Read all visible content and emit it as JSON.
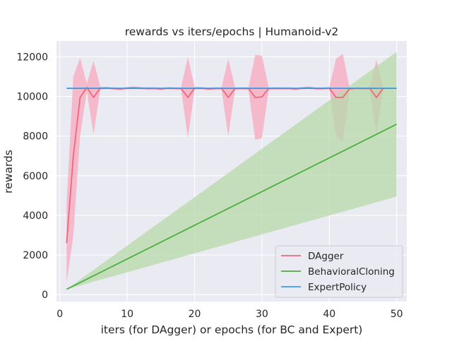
{
  "chart_data": {
    "type": "line",
    "title": "rewards vs iters/epochs | Humanoid-v2",
    "xlabel": "iters (for DAgger) or epochs (for BC and Expert)",
    "ylabel": "rewards",
    "xlim": [
      -0.5,
      51.5
    ],
    "ylim": [
      -350,
      12800
    ],
    "xticks": [
      0,
      10,
      20,
      30,
      40,
      50
    ],
    "yticks": [
      0,
      2000,
      4000,
      6000,
      8000,
      10000,
      12000
    ],
    "grid": true,
    "legend_position": "lower-right",
    "background_color": "#eaeaf2",
    "series": [
      {
        "name": "DAgger",
        "color": "#f0677d",
        "band_color": "#f7a8bc",
        "x": [
          1,
          2,
          3,
          4,
          5,
          6,
          7,
          8,
          9,
          10,
          11,
          12,
          13,
          14,
          15,
          16,
          17,
          18,
          19,
          20,
          21,
          22,
          23,
          24,
          25,
          26,
          27,
          28,
          29,
          30,
          31,
          32,
          33,
          34,
          35,
          36,
          37,
          38,
          39,
          40,
          41,
          42,
          43,
          44,
          45,
          46,
          47,
          48
        ],
        "y": [
          2600,
          7000,
          9950,
          10450,
          9950,
          10420,
          10430,
          10400,
          10380,
          10420,
          10440,
          10420,
          10400,
          10410,
          10380,
          10420,
          10410,
          10400,
          9950,
          10420,
          10420,
          10380,
          10400,
          10410,
          9950,
          10400,
          10410,
          10400,
          9950,
          9980,
          10400,
          10410,
          10400,
          10410,
          10380,
          10420,
          10440,
          10400,
          10400,
          10420,
          9950,
          9950,
          10380,
          10410,
          10400,
          10410,
          9950,
          10410
        ],
        "y_low": [
          600,
          3000,
          8000,
          10250,
          8100,
          10350,
          10380,
          10340,
          10320,
          10360,
          10380,
          10360,
          10340,
          10350,
          10320,
          10360,
          10350,
          10340,
          7900,
          10360,
          10360,
          10320,
          10340,
          10350,
          8000,
          10340,
          10350,
          10340,
          7800,
          7900,
          10340,
          10350,
          10340,
          10350,
          10320,
          10360,
          10380,
          10340,
          10340,
          10360,
          8000,
          7700,
          10320,
          10350,
          10340,
          10350,
          8100,
          10350
        ],
        "y_high": [
          4600,
          11000,
          11950,
          10650,
          11800,
          10490,
          10480,
          10460,
          10440,
          10480,
          10500,
          10480,
          10460,
          10470,
          10440,
          10480,
          10470,
          10460,
          12000,
          10480,
          10480,
          10440,
          10460,
          10470,
          11900,
          10460,
          10470,
          10460,
          12100,
          12050,
          10460,
          10470,
          10460,
          10470,
          10440,
          10480,
          10500,
          10460,
          10460,
          10480,
          11900,
          12150,
          10440,
          10470,
          10460,
          10470,
          11850,
          10470
        ]
      },
      {
        "name": "BehavioralCloning",
        "color": "#4daf3c",
        "band_color": "#b7d9aa",
        "x": [
          1,
          50
        ],
        "y": [
          270,
          8600
        ],
        "y_low": [
          270,
          4950
        ],
        "y_high": [
          270,
          12250
        ]
      },
      {
        "name": "ExpertPolicy",
        "color": "#3d9be6",
        "x": [
          1,
          50
        ],
        "y": [
          10410,
          10410
        ]
      }
    ]
  }
}
